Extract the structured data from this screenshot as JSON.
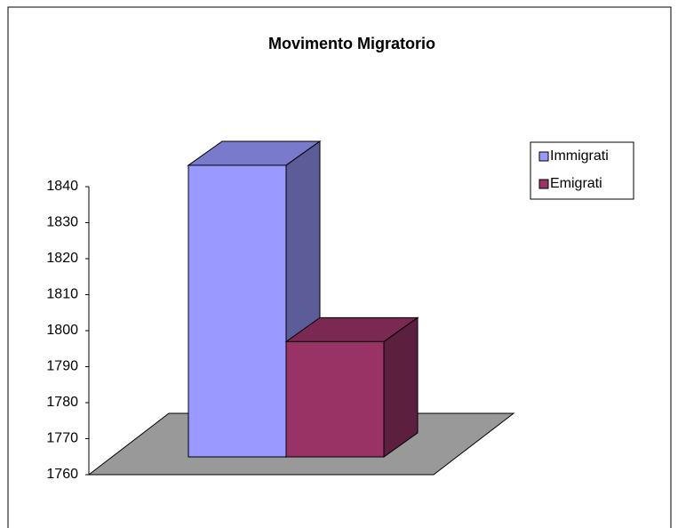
{
  "chart_data": {
    "type": "bar3d",
    "title": "Movimento Migratorio",
    "series": [
      {
        "name": "Immigrati",
        "color": "#9999ff",
        "values": [
          1841
        ]
      },
      {
        "name": "Emigrati",
        "color": "#993366",
        "values": [
          1792
        ]
      }
    ],
    "ylim": [
      1760,
      1840
    ],
    "yticks": [
      1760,
      1770,
      1780,
      1790,
      1800,
      1810,
      1820,
      1830,
      1840
    ],
    "legend": "right"
  }
}
